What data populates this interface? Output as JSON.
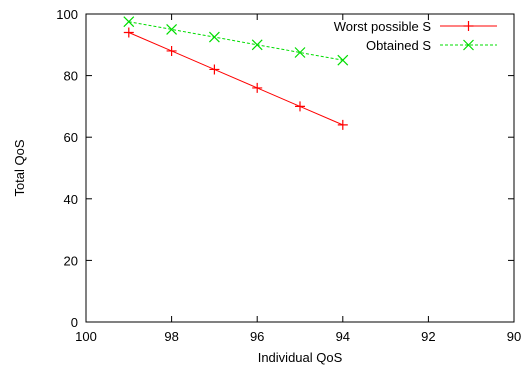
{
  "chart_data": {
    "type": "line",
    "xlabel": "Individual QoS",
    "ylabel": "Total QoS",
    "xlim": [
      100,
      90
    ],
    "ylim": [
      0,
      100
    ],
    "x_reversed": true,
    "xticks": [
      100,
      98,
      96,
      94,
      92,
      90
    ],
    "yticks": [
      0,
      20,
      40,
      60,
      80,
      100
    ],
    "grid": false,
    "legend_position": "top-right",
    "series": [
      {
        "name": "Worst possible S",
        "color": "#ff0000",
        "line_style": "solid",
        "marker": "plus",
        "x": [
          99,
          98,
          97,
          96,
          95,
          94
        ],
        "y": [
          94,
          88,
          82,
          76,
          70,
          64
        ]
      },
      {
        "name": "Obtained S",
        "color": "#00dd00",
        "line_style": "dashed",
        "marker": "cross",
        "x": [
          99,
          98,
          97,
          96,
          95,
          94
        ],
        "y": [
          97.5,
          95,
          92.5,
          90,
          87.5,
          85
        ]
      }
    ]
  }
}
